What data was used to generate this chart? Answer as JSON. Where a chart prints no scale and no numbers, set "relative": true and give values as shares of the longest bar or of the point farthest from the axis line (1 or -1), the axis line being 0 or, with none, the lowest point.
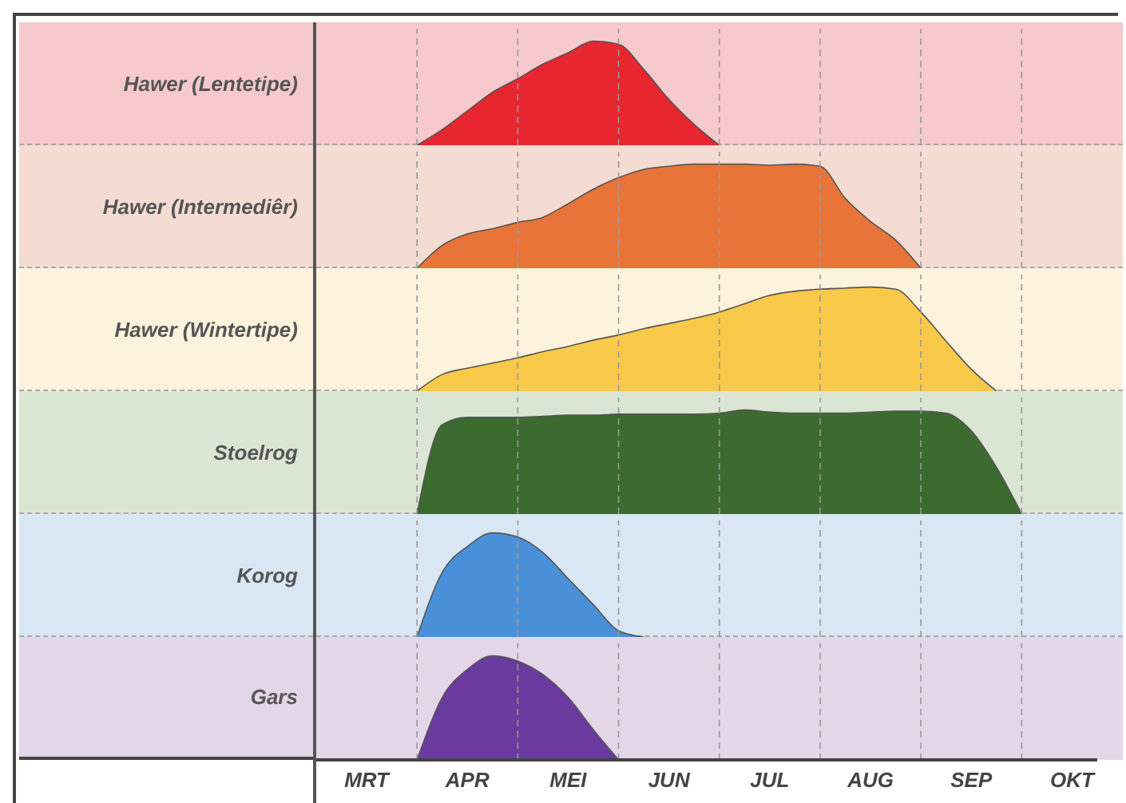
{
  "chart_data": [
    {
      "type": "area",
      "title": "Hawer (Lentetipe)",
      "relative": true,
      "tick_labels": false,
      "grid": "x",
      "color": "#e8262f",
      "values": [
        null,
        null,
        null,
        null,
        0,
        0.15,
        0.33,
        0.51,
        0.64,
        0.78,
        0.89,
        1,
        0.97,
        0.73,
        0.44,
        0.2,
        0,
        null,
        null,
        null,
        null,
        null,
        null,
        null,
        null,
        null,
        null,
        null,
        null,
        null,
        null,
        null
      ]
    },
    {
      "type": "area",
      "title": "Hawer (Intermediêr)",
      "relative": true,
      "tick_labels": false,
      "grid": "x",
      "color": "#e8743a",
      "values": [
        null,
        null,
        null,
        null,
        0,
        0.22,
        0.33,
        0.38,
        0.44,
        0.49,
        0.62,
        0.76,
        0.87,
        0.95,
        0.98,
        1,
        1,
        1,
        0.99,
        1,
        0.98,
        0.67,
        0.45,
        0.27,
        0,
        null,
        null,
        null,
        null,
        null,
        null,
        null
      ]
    },
    {
      "type": "area",
      "title": "Hawer (Wintertipe)",
      "relative": true,
      "tick_labels": false,
      "grid": "x",
      "color": "#f9c94a",
      "values": [
        null,
        null,
        null,
        null,
        0,
        0.16,
        0.22,
        0.27,
        0.32,
        0.38,
        0.43,
        0.49,
        0.54,
        0.6,
        0.65,
        0.7,
        0.76,
        0.84,
        0.92,
        0.96,
        0.98,
        0.99,
        1,
        0.98,
        0.76,
        0.48,
        0.21,
        0,
        null,
        null,
        null,
        null
      ]
    },
    {
      "type": "area",
      "title": "Stoelrog",
      "relative": true,
      "tick_labels": false,
      "grid": "x",
      "color": "#3b6b2f",
      "values": [
        null,
        null,
        null,
        null,
        0,
        0.86,
        0.93,
        0.93,
        0.93,
        0.94,
        0.95,
        0.95,
        0.96,
        0.96,
        0.96,
        0.96,
        0.97,
        1,
        0.98,
        0.97,
        0.97,
        0.97,
        0.98,
        0.99,
        0.99,
        0.97,
        0.8,
        0.45,
        0,
        null,
        null,
        null
      ]
    },
    {
      "type": "area",
      "title": "Korog",
      "relative": true,
      "tick_labels": false,
      "grid": "x",
      "color": "#4a90d9",
      "values": [
        null,
        null,
        null,
        null,
        0,
        0.62,
        0.87,
        1,
        0.96,
        0.81,
        0.56,
        0.31,
        0.06,
        0,
        null,
        null,
        null,
        null,
        null,
        null,
        null,
        null,
        null,
        null,
        null,
        null,
        null,
        null,
        null,
        null,
        null,
        null
      ]
    },
    {
      "type": "area",
      "title": "Gars",
      "relative": true,
      "tick_labels": "x",
      "grid": "x",
      "color": "#6a3a9e",
      "categories": [
        null,
        null,
        "MRT",
        null,
        null,
        null,
        "APR",
        null,
        null,
        null,
        "MEI",
        null,
        null,
        null,
        "JUN",
        null,
        null,
        null,
        "JUL",
        null,
        null,
        null,
        "AUG",
        null,
        null,
        null,
        "SEP",
        null,
        null,
        null,
        "OKT",
        null
      ],
      "values": [
        null,
        null,
        null,
        null,
        0,
        0.6,
        0.87,
        1,
        0.95,
        0.82,
        0.6,
        0.29,
        0,
        null,
        null,
        null,
        null,
        null,
        null,
        null,
        null,
        null,
        null,
        null,
        null,
        null,
        null,
        null,
        null,
        null,
        null,
        null
      ]
    }
  ]
}
